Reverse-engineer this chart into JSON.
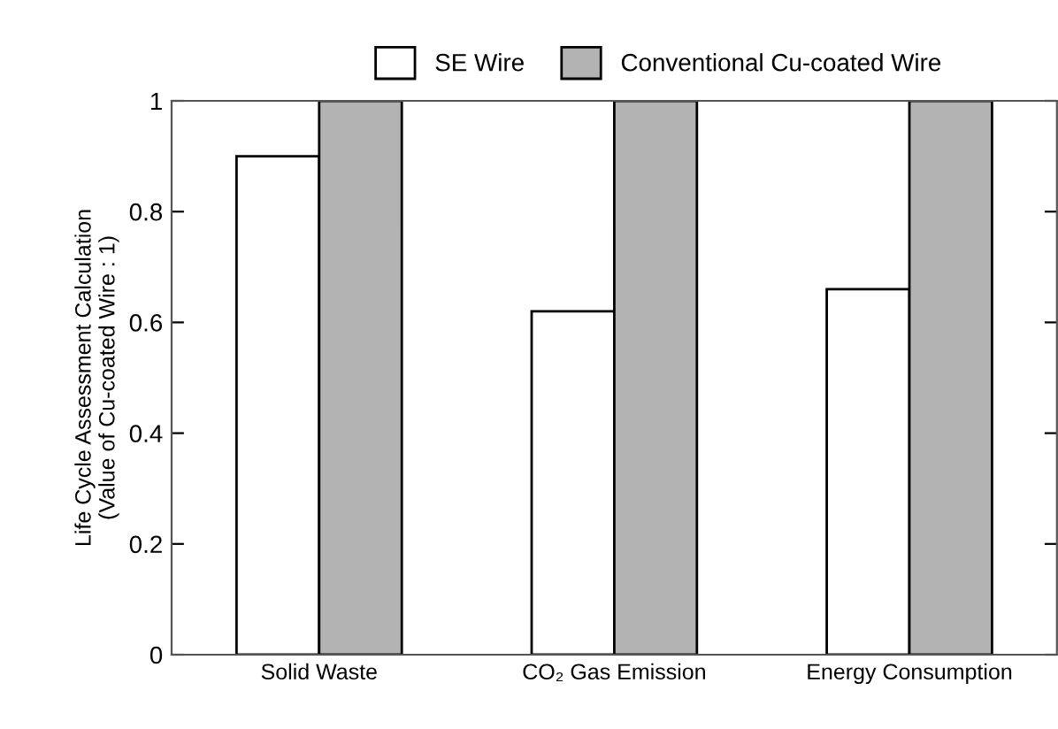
{
  "chart_data": {
    "type": "bar",
    "categories": [
      "Solid Waste",
      "CO₂ Gas Emission",
      "Energy Consumption"
    ],
    "ylabel": "Life Cycle Assessment Calculation\n(Value of Cu-coated Wire : 1)",
    "series": [
      {
        "name": "SE Wire",
        "color": "#ffffff",
        "values": [
          0.9,
          0.62,
          0.66
        ]
      },
      {
        "name": "Conventional Cu-coated Wire",
        "color": "#b3b3b3",
        "values": [
          1,
          1,
          1
        ]
      }
    ],
    "ylim": [
      0,
      1
    ],
    "yticks": [
      0,
      0.2,
      0.4,
      0.6,
      0.8,
      1
    ],
    "grid": false,
    "legend": "top"
  }
}
